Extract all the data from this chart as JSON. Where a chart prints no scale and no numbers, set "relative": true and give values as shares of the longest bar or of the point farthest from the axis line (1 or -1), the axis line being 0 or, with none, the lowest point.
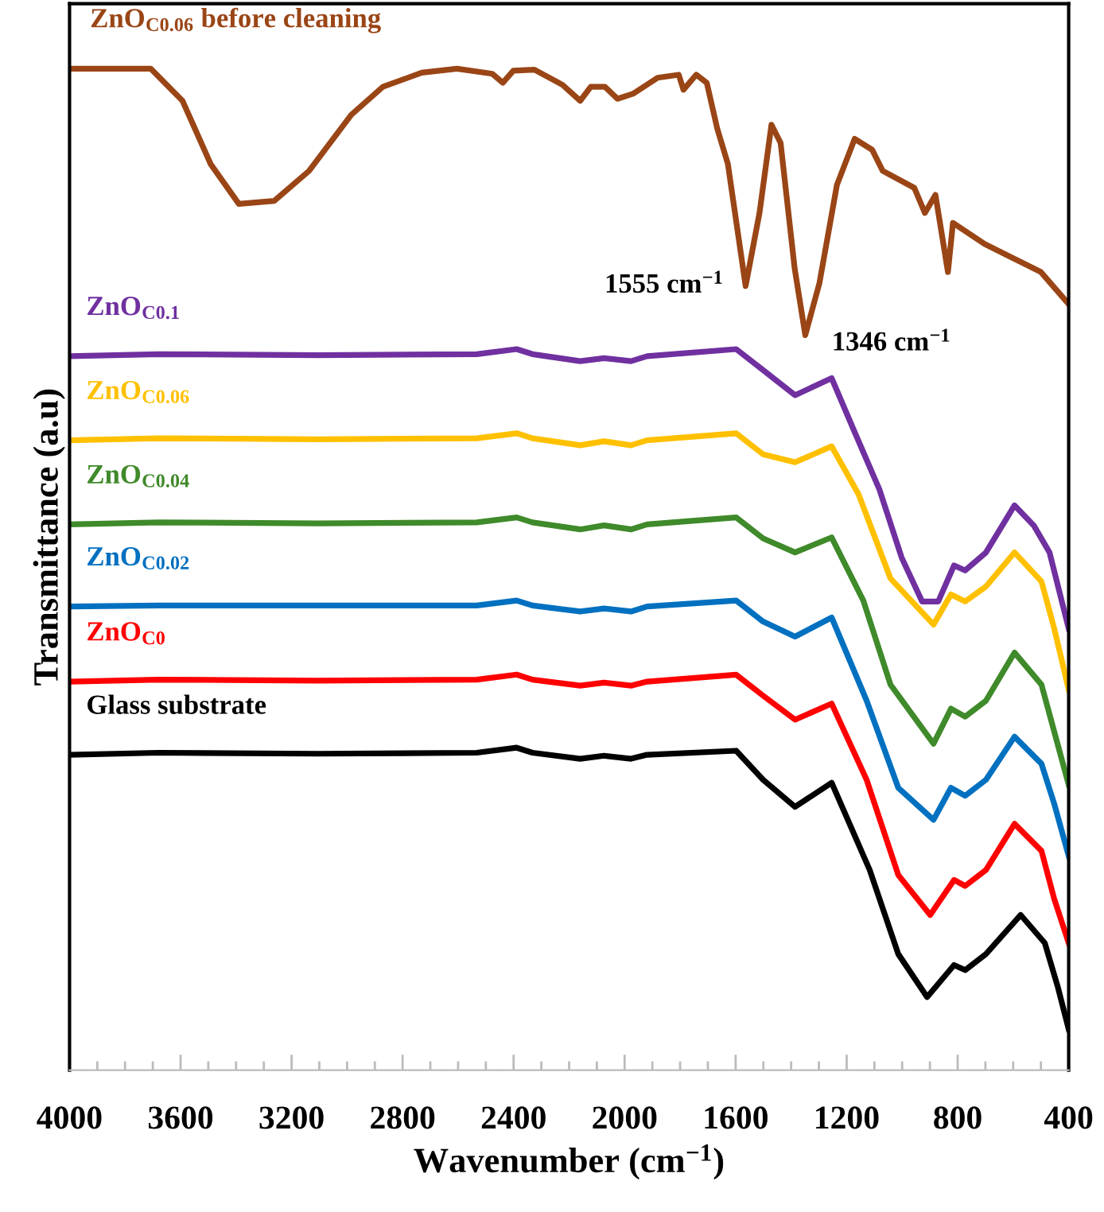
{
  "chart_data": {
    "type": "line",
    "relative": true,
    "xlabel": "Wavenumber (cm$^{−1}$)",
    "ylabel": "Transmittance (a.u)",
    "xlim": [
      4000,
      400
    ],
    "xticks": [
      4000,
      3600,
      3200,
      2800,
      2400,
      2000,
      1600,
      1200,
      800,
      400
    ],
    "tick_labels": "x",
    "grid": false,
    "legend": false,
    "marker": "none",
    "line_style": "solid",
    "annotations": [
      {
        "text": "1555 cm$^{−1}$",
        "x": 1564,
        "y": 0.783
      },
      {
        "text": "1346 cm$^{−1}$",
        "x": 1349,
        "y": 0.734
      }
    ],
    "series": [
      {
        "name": "ZnO$_{C0.06}$ before cleaning",
        "color": "#9a4516",
        "x": [
          3986,
          3707,
          3593,
          3492,
          3390,
          3263,
          3137,
          2985,
          2871,
          2731,
          2604,
          2477,
          2439,
          2401,
          2325,
          2224,
          2160,
          2122,
          2071,
          2026,
          1970,
          1881,
          1805,
          1788,
          1742,
          1704,
          1666,
          1628,
          1564,
          1514,
          1471,
          1438,
          1387,
          1349,
          1298,
          1235,
          1171,
          1108,
          1070,
          956,
          918,
          880,
          835,
          817,
          703,
          601,
          500,
          400
        ],
        "values": [
          1.0,
          1.0,
          0.968,
          0.905,
          0.865,
          0.868,
          0.898,
          0.954,
          0.982,
          0.996,
          1.0,
          0.995,
          0.986,
          0.998,
          0.999,
          0.984,
          0.968,
          0.982,
          0.982,
          0.97,
          0.975,
          0.991,
          0.994,
          0.979,
          0.994,
          0.986,
          0.94,
          0.905,
          0.783,
          0.856,
          0.944,
          0.926,
          0.8,
          0.734,
          0.786,
          0.884,
          0.93,
          0.919,
          0.898,
          0.881,
          0.856,
          0.874,
          0.797,
          0.846,
          0.825,
          0.811,
          0.797,
          0.765
        ]
      },
      {
        "name": "ZnO$_{C0.1}$",
        "color": "#7030a0",
        "x": [
          4000,
          3679,
          3106,
          2533,
          2389,
          2332,
          2160,
          2074,
          1977,
          1919,
          1598,
          1501,
          1386,
          1254,
          1174,
          1082,
          1002,
          928,
          870,
          813,
          773,
          698,
          595,
          526,
          469,
          400
        ],
        "values": [
          0.713,
          0.715,
          0.714,
          0.715,
          0.72,
          0.715,
          0.708,
          0.711,
          0.708,
          0.713,
          0.72,
          0.699,
          0.674,
          0.691,
          0.639,
          0.58,
          0.512,
          0.468,
          0.468,
          0.504,
          0.499,
          0.517,
          0.564,
          0.544,
          0.517,
          0.441
        ]
      },
      {
        "name": "ZnO$_{C0.06}$",
        "color": "#ffc000",
        "x": [
          4000,
          3679,
          3106,
          2533,
          2389,
          2332,
          2160,
          2074,
          1977,
          1919,
          1598,
          1501,
          1386,
          1254,
          1157,
          1042,
          887,
          824,
          773,
          698,
          595,
          498,
          452,
          400
        ],
        "values": [
          0.629,
          0.631,
          0.63,
          0.631,
          0.636,
          0.631,
          0.624,
          0.628,
          0.624,
          0.629,
          0.636,
          0.615,
          0.607,
          0.623,
          0.575,
          0.491,
          0.445,
          0.475,
          0.468,
          0.483,
          0.517,
          0.488,
          0.441,
          0.38
        ]
      },
      {
        "name": "ZnO$_{C0.04}$",
        "color": "#3f8a2a",
        "x": [
          4000,
          3679,
          3106,
          2533,
          2389,
          2332,
          2160,
          2074,
          1977,
          1919,
          1598,
          1501,
          1386,
          1254,
          1140,
          1042,
          887,
          824,
          773,
          698,
          595,
          498,
          452,
          400
        ],
        "values": [
          0.545,
          0.547,
          0.546,
          0.547,
          0.552,
          0.547,
          0.54,
          0.544,
          0.54,
          0.545,
          0.552,
          0.531,
          0.517,
          0.532,
          0.469,
          0.385,
          0.326,
          0.361,
          0.353,
          0.369,
          0.417,
          0.385,
          0.338,
          0.285
        ]
      },
      {
        "name": "ZnO$_{C0.02}$",
        "color": "#0070c0",
        "x": [
          4000,
          3679,
          3106,
          2533,
          2389,
          2332,
          2160,
          2074,
          1977,
          1919,
          1598,
          1501,
          1386,
          1254,
          1128,
          1014,
          887,
          824,
          773,
          698,
          595,
          498,
          452,
          400
        ],
        "values": [
          0.463,
          0.464,
          0.464,
          0.464,
          0.469,
          0.464,
          0.458,
          0.461,
          0.458,
          0.463,
          0.469,
          0.448,
          0.433,
          0.452,
          0.369,
          0.282,
          0.25,
          0.282,
          0.274,
          0.29,
          0.333,
          0.306,
          0.266,
          0.214
        ]
      },
      {
        "name": "ZnO$_{C0}$",
        "color": "#ff0000",
        "x": [
          4000,
          3679,
          3106,
          2533,
          2389,
          2332,
          2160,
          2074,
          1977,
          1919,
          1598,
          1501,
          1386,
          1254,
          1128,
          1014,
          899,
          813,
          773,
          698,
          595,
          498,
          452,
          400
        ],
        "values": [
          0.388,
          0.39,
          0.389,
          0.39,
          0.395,
          0.39,
          0.384,
          0.387,
          0.384,
          0.388,
          0.395,
          0.374,
          0.35,
          0.366,
          0.29,
          0.195,
          0.155,
          0.19,
          0.184,
          0.2,
          0.246,
          0.219,
          0.171,
          0.127
        ]
      },
      {
        "name": "Glass substrate",
        "color": "#000000",
        "x": [
          4000,
          3679,
          3106,
          2533,
          2389,
          2332,
          2160,
          2074,
          1977,
          1919,
          1598,
          1501,
          1386,
          1254,
          1117,
          1014,
          910,
          813,
          773,
          698,
          573,
          486,
          440,
          400
        ],
        "values": [
          0.315,
          0.317,
          0.316,
          0.317,
          0.322,
          0.317,
          0.311,
          0.314,
          0.311,
          0.315,
          0.319,
          0.29,
          0.263,
          0.287,
          0.2,
          0.116,
          0.073,
          0.105,
          0.1,
          0.116,
          0.155,
          0.127,
          0.084,
          0.041
        ]
      }
    ]
  }
}
